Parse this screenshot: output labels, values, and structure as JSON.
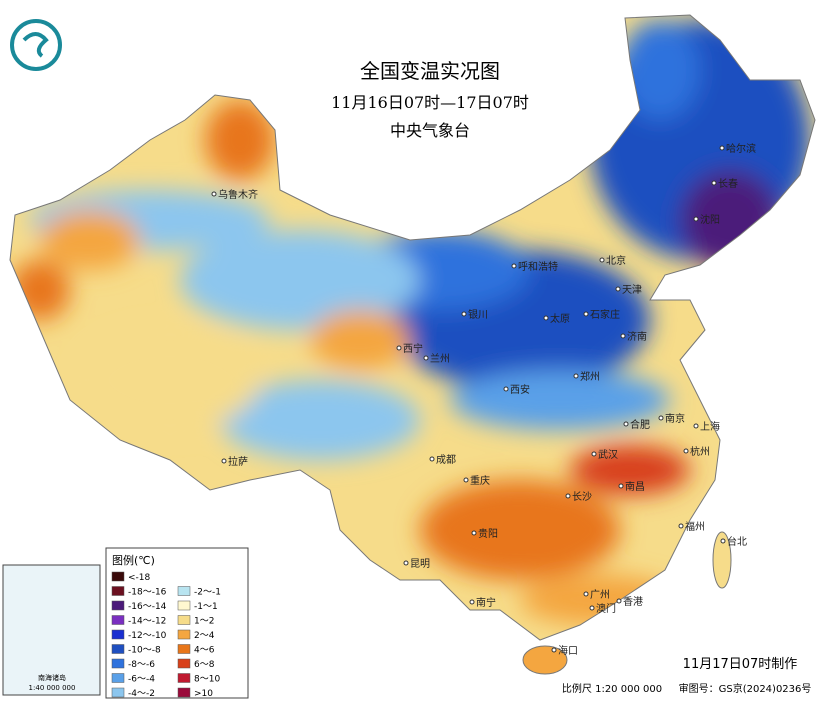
{
  "header": {
    "title": "全国变温实况图",
    "subtitle": "11月16日07时—17日07时",
    "issuer": "中央气象台"
  },
  "legend": {
    "title": "图例(℃)",
    "items": [
      {
        "label": "<-18",
        "color": "#3a0a0a"
      },
      {
        "label": "-18～-16",
        "color": "#6b1020"
      },
      {
        "label": "-16～-14",
        "color": "#4b1a7a"
      },
      {
        "label": "-14～-12",
        "color": "#7a2fc0"
      },
      {
        "label": "-12～-10",
        "color": "#1a2fd0"
      },
      {
        "label": "-10～-8",
        "color": "#1f4fc0"
      },
      {
        "label": "-8～-6",
        "color": "#2f72dd"
      },
      {
        "label": "-6～-4",
        "color": "#5aa0e8"
      },
      {
        "label": "-4～-2",
        "color": "#8cc6ee"
      },
      {
        "label": "-2～-1",
        "color": "#b8e4f0"
      },
      {
        "label": "-1～1",
        "color": "#fff8d0"
      },
      {
        "label": "1～2",
        "color": "#f6dc8a"
      },
      {
        "label": "2～4",
        "color": "#f4a640"
      },
      {
        "label": "4～6",
        "color": "#e8761a"
      },
      {
        "label": "6～8",
        "color": "#d8401a"
      },
      {
        "label": "8～10",
        "color": "#c01a30"
      },
      {
        "label": ">10",
        "color": "#9a0a3a"
      }
    ]
  },
  "cities": [
    "乌鲁木齐",
    "哈尔滨",
    "长春",
    "沈阳",
    "呼和浩特",
    "北京",
    "天津",
    "银川",
    "太原",
    "石家庄",
    "济南",
    "西宁",
    "兰州",
    "郑州",
    "西安",
    "合肥",
    "南京",
    "上海",
    "武汉",
    "杭州",
    "成都",
    "拉萨",
    "重庆",
    "长沙",
    "南昌",
    "福州",
    "台北",
    "贵阳",
    "昆明",
    "广州",
    "南宁",
    "澳门",
    "香港",
    "海口"
  ],
  "inset": {
    "title": "南海诸岛",
    "scale": "1:40 000 000"
  },
  "footer": {
    "made": "11月17日07时制作",
    "scale": "比例尺 1:20 000 000",
    "approval": "审图号：GS京(2024)0236号"
  }
}
